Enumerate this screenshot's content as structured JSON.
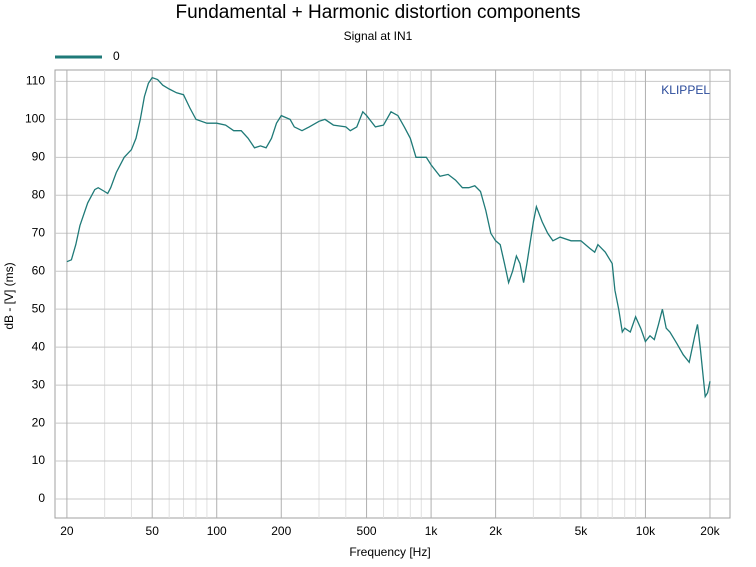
{
  "chart_data": {
    "type": "line",
    "title": "Fundamental + Harmonic distortion components",
    "subtitle": "Signal at IN1",
    "x_label": "Frequency [Hz]",
    "y_label": "dB - [V]  (ms)",
    "watermark": "KLIPPEL",
    "log_x": true,
    "grid": true,
    "legend": "top-left",
    "xlim": [
      17.6,
      24800
    ],
    "ylim": [
      -5,
      113
    ],
    "xticks": [
      20,
      50,
      100,
      200,
      500,
      {
        "value": 1000,
        "label": "1k"
      },
      {
        "value": 2000,
        "label": "2k"
      },
      {
        "value": 5000,
        "label": "5k"
      },
      {
        "value": 10000,
        "label": "10k"
      },
      {
        "value": 20000,
        "label": "20k"
      }
    ],
    "xgrid_minor": [
      30,
      40,
      60,
      70,
      80,
      90,
      300,
      400,
      600,
      700,
      800,
      900,
      3000,
      4000,
      6000,
      7000,
      8000,
      9000
    ],
    "yticks": [
      0,
      10,
      20,
      30,
      40,
      50,
      60,
      70,
      80,
      90,
      100,
      110
    ],
    "x": [
      20,
      21,
      22,
      23,
      25,
      27,
      28,
      30,
      31,
      32,
      34,
      37,
      40,
      42,
      44,
      46,
      48,
      50,
      53,
      56,
      60,
      65,
      70,
      75,
      80,
      90,
      100,
      110,
      120,
      130,
      140,
      150,
      160,
      170,
      180,
      190,
      200,
      220,
      230,
      250,
      270,
      300,
      320,
      350,
      400,
      420,
      450,
      480,
      500,
      550,
      600,
      650,
      700,
      750,
      800,
      850,
      950,
      1000,
      1100,
      1200,
      1300,
      1400,
      1500,
      1600,
      1700,
      1800,
      1900,
      2000,
      2100,
      2200,
      2300,
      2400,
      2500,
      2600,
      2700,
      2800,
      3000,
      3100,
      3300,
      3500,
      3700,
      4000,
      4500,
      5000,
      5500,
      5800,
      6000,
      6500,
      7000,
      7200,
      7500,
      7800,
      8000,
      8500,
      9000,
      9500,
      10000,
      10500,
      11000,
      11500,
      12000,
      12500,
      13000,
      14000,
      15000,
      16000,
      17000,
      17500,
      18000,
      19000,
      19500,
      20000
    ],
    "series": [
      {
        "name": "0",
        "color": "#1f7a78",
        "values": [
          62.5,
          63,
          67,
          72,
          78,
          81.5,
          82,
          81,
          80.5,
          82,
          86,
          90,
          92,
          95,
          100,
          106,
          109.5,
          111,
          110.5,
          109,
          108,
          107,
          106.5,
          103,
          100,
          99,
          99,
          98.5,
          97,
          97,
          95,
          92.5,
          93,
          92.5,
          95,
          99,
          101,
          100,
          98,
          97,
          98,
          99.5,
          100,
          98.5,
          98,
          97,
          98,
          102,
          101,
          98,
          98.5,
          102,
          101,
          98,
          95,
          90,
          90,
          88,
          85,
          85.5,
          84,
          82,
          82,
          82.5,
          81,
          76,
          70,
          68,
          67,
          62,
          57,
          60,
          64,
          62,
          57,
          62,
          73,
          77,
          73,
          70,
          68,
          69,
          68,
          68,
          66,
          65,
          67,
          65,
          62,
          55,
          50,
          44,
          45,
          44,
          48,
          45,
          41.5,
          43,
          42,
          46,
          50,
          45,
          44,
          41,
          38,
          36,
          43,
          46,
          40,
          27,
          28,
          31
        ]
      }
    ]
  }
}
